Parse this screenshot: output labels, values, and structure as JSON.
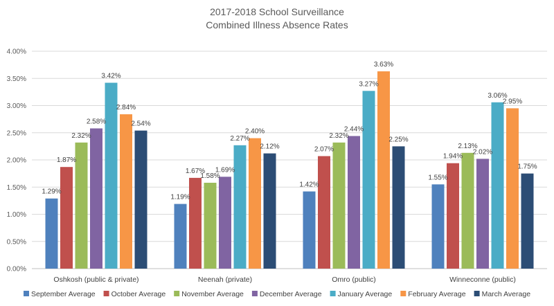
{
  "chart_data": {
    "type": "bar",
    "title": [
      "2017-2018 School Surveillance",
      "Combined Illness Absence Rates"
    ],
    "categories": [
      "Oshkosh (public & private)",
      "Neenah (private)",
      "Omro (public)",
      "Winneconne (public)"
    ],
    "ylim": [
      0,
      4
    ],
    "yticks": [
      "0.00%",
      "0.50%",
      "1.00%",
      "1.50%",
      "2.00%",
      "2.50%",
      "3.00%",
      "3.50%",
      "4.00%"
    ],
    "grid": true,
    "legend_position": "bottom",
    "series": [
      {
        "name": "September Average",
        "color": "#4f81bd",
        "values": [
          1.29,
          1.19,
          1.42,
          1.55
        ],
        "labels": [
          "1.29%",
          "1.19%",
          "1.42%",
          "1.55%"
        ]
      },
      {
        "name": "October Average",
        "color": "#c0504d",
        "values": [
          1.87,
          1.67,
          2.07,
          1.94
        ],
        "labels": [
          "1.87%",
          "1.67%",
          "2.07%",
          "1.94%"
        ]
      },
      {
        "name": "November Average",
        "color": "#9bbb59",
        "values": [
          2.32,
          1.58,
          2.32,
          2.13
        ],
        "labels": [
          "2.32%",
          "1.58%",
          "2.32%",
          "2.13%"
        ]
      },
      {
        "name": "December Average",
        "color": "#8064a2",
        "values": [
          2.58,
          1.69,
          2.44,
          2.02
        ],
        "labels": [
          "2.58%",
          "1.69%",
          "2.44%",
          "2.02%"
        ]
      },
      {
        "name": "January Average",
        "color": "#4bacc6",
        "values": [
          3.42,
          2.27,
          3.27,
          3.06
        ],
        "labels": [
          "3.42%",
          "2.27%",
          "3.27%",
          "3.06%"
        ]
      },
      {
        "name": "February Average",
        "color": "#f79646",
        "values": [
          2.84,
          2.4,
          3.63,
          2.95
        ],
        "labels": [
          "2.84%",
          "2.40%",
          "3.63%",
          "2.95%"
        ]
      },
      {
        "name": "March Average",
        "color": "#2c4d75",
        "values": [
          2.54,
          2.12,
          2.25,
          1.75
        ],
        "labels": [
          "2.54%",
          "2.12%",
          "2.25%",
          "1.75%"
        ]
      }
    ]
  }
}
